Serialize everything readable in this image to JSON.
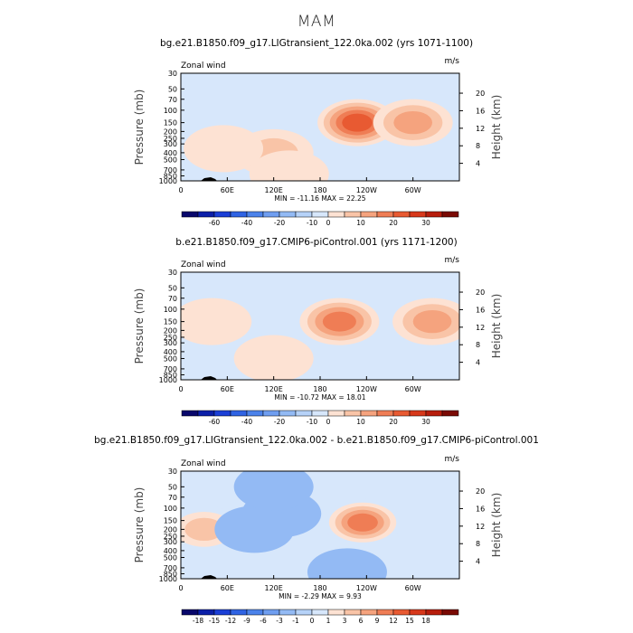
{
  "page": {
    "title": "MAM"
  },
  "chart_data": [
    {
      "type": "heatmap",
      "title": "bg.e21.B1850.f09_g17.LIGtransient_122.0ka.002 (yrs 1071-1100)",
      "left_string": "Zonal wind",
      "right_string": "m/s",
      "ylabel": "Pressure (mb)",
      "ylabel_right": "Height (km)",
      "x_tick_labels": [
        "0",
        "60E",
        "120E",
        "180",
        "120W",
        "60W"
      ],
      "y_tick_labels": [
        "30",
        "50",
        "70",
        "100",
        "150",
        "200",
        "250",
        "300",
        "400",
        "500",
        "700",
        "850",
        "1000"
      ],
      "height_tick_labels": [
        "4",
        "8",
        "12",
        "16",
        "20"
      ],
      "stats_text": "MIN = -11.16   MAX =  22.25",
      "min": -11.16,
      "max": 22.25,
      "colorbar_labels": [
        "-60",
        "-40",
        "-20",
        "-10",
        "0",
        "10",
        "20",
        "30"
      ],
      "levels": [
        -70,
        -60,
        -50,
        -40,
        -30,
        -20,
        -15,
        -10,
        -5,
        0,
        5,
        10,
        15,
        20,
        25,
        30,
        35
      ],
      "features": [
        {
          "lon": 228,
          "p": 150,
          "value": 22,
          "description": "westerly jet maximum"
        },
        {
          "lon": 300,
          "p": 150,
          "value": 13
        },
        {
          "lon": 120,
          "p": 400,
          "value": 6
        },
        {
          "lon": 55,
          "p": 350,
          "value": 4
        },
        {
          "lon": 140,
          "p": 800,
          "value": 4
        },
        {
          "lon": 150,
          "p": 50,
          "value": -3
        },
        {
          "lon": 70,
          "p": 120,
          "value": -3
        }
      ]
    },
    {
      "type": "heatmap",
      "title": "b.e21.B1850.f09_g17.CMIP6-piControl.001 (yrs 1171-1200)",
      "left_string": "Zonal wind",
      "right_string": "m/s",
      "ylabel": "Pressure (mb)",
      "ylabel_right": "Height (km)",
      "x_tick_labels": [
        "0",
        "60E",
        "120E",
        "180",
        "120W",
        "60W"
      ],
      "y_tick_labels": [
        "30",
        "50",
        "70",
        "100",
        "150",
        "200",
        "250",
        "300",
        "400",
        "500",
        "700",
        "850",
        "1000"
      ],
      "height_tick_labels": [
        "4",
        "8",
        "12",
        "16",
        "20"
      ],
      "stats_text": "MIN = -10.72   MAX =  18.01",
      "min": -10.72,
      "max": 18.01,
      "colorbar_labels": [
        "-60",
        "-40",
        "-20",
        "-10",
        "0",
        "10",
        "20",
        "30"
      ],
      "levels": [
        -70,
        -60,
        -50,
        -40,
        -30,
        -20,
        -15,
        -10,
        -5,
        0,
        5,
        10,
        15,
        20,
        25,
        30,
        35
      ],
      "features": [
        {
          "lon": 205,
          "p": 150,
          "value": 18,
          "description": "westerly jet maximum"
        },
        {
          "lon": 325,
          "p": 150,
          "value": 14
        },
        {
          "lon": 40,
          "p": 150,
          "value": 4
        },
        {
          "lon": 120,
          "p": 500,
          "value": 4
        },
        {
          "lon": 150,
          "p": 50,
          "value": -3
        },
        {
          "lon": 120,
          "p": 110,
          "value": -3
        }
      ]
    },
    {
      "type": "heatmap",
      "title": "bg.e21.B1850.f09_g17.LIGtransient_122.0ka.002 - b.e21.B1850.f09_g17.CMIP6-piControl.001",
      "left_string": "Zonal wind",
      "right_string": "m/s",
      "ylabel": "Pressure (mb)",
      "ylabel_right": "Height (km)",
      "x_tick_labels": [
        "0",
        "60E",
        "120E",
        "180",
        "120W",
        "60W"
      ],
      "y_tick_labels": [
        "30",
        "50",
        "70",
        "100",
        "150",
        "200",
        "250",
        "300",
        "400",
        "500",
        "700",
        "850",
        "1000"
      ],
      "height_tick_labels": [
        "4",
        "8",
        "12",
        "16",
        "20"
      ],
      "stats_text": "MIN = -2.29   MAX =  9.93",
      "min": -2.29,
      "max": 9.93,
      "colorbar_labels": [
        "-18",
        "-15",
        "-12",
        "-9",
        "-6",
        "-3",
        "-1",
        "0",
        "1",
        "3",
        "6",
        "9",
        "12",
        "15",
        "18"
      ],
      "levels": [
        -21,
        -18,
        -15,
        -12,
        -9,
        -6,
        -3,
        -1,
        0,
        1,
        3,
        6,
        9,
        12,
        15,
        18,
        21
      ],
      "features": [
        {
          "lon": 235,
          "p": 160,
          "value": 9.9,
          "description": "difference maximum"
        },
        {
          "lon": 30,
          "p": 200,
          "value": 3
        },
        {
          "lon": 130,
          "p": 120,
          "value": -2
        },
        {
          "lon": 95,
          "p": 200,
          "value": -1.5
        },
        {
          "lon": 215,
          "p": 800,
          "value": -1
        },
        {
          "lon": 120,
          "p": 50,
          "value": -1
        }
      ]
    }
  ]
}
